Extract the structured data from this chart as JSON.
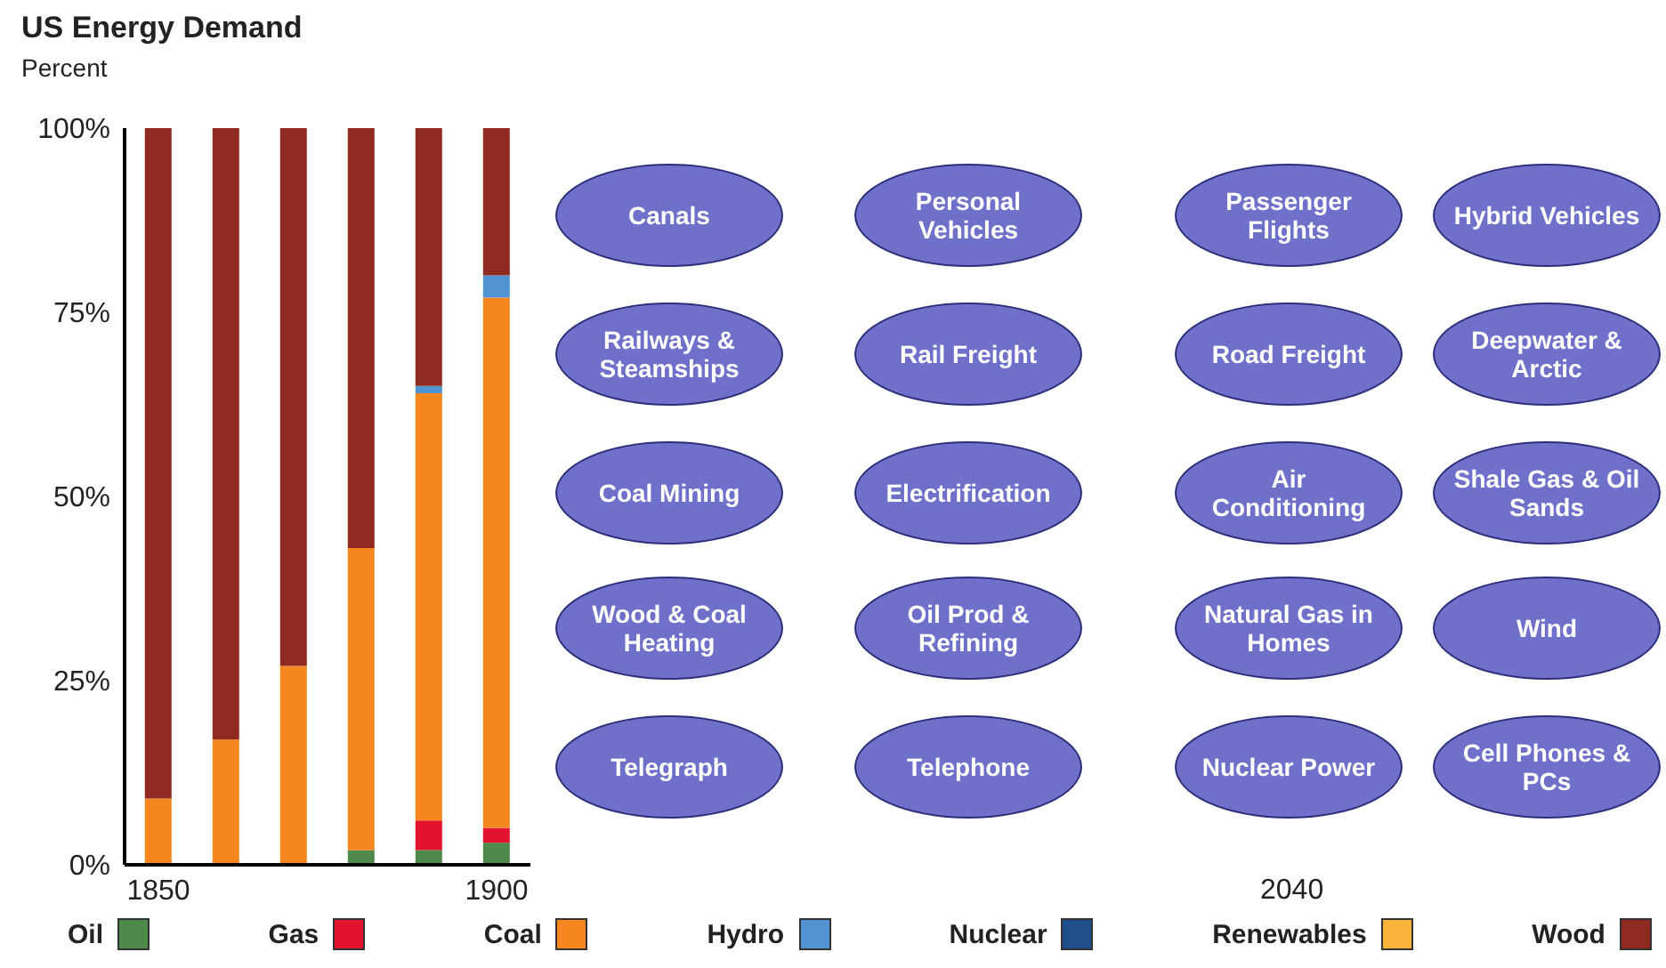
{
  "chart_data": {
    "type": "bar",
    "stacked": true,
    "title": "US Energy Demand",
    "ylabel": "Percent",
    "categories": [
      "1850",
      null,
      null,
      null,
      null,
      "1900"
    ],
    "series": [
      {
        "name": "Oil",
        "color": "#4f8a4a",
        "values": [
          0,
          0,
          0,
          2,
          2,
          3
        ]
      },
      {
        "name": "Gas",
        "color": "#e3132f",
        "values": [
          0,
          0,
          0,
          0,
          4,
          2
        ]
      },
      {
        "name": "Coal",
        "color": "#f7861f",
        "values": [
          9,
          17,
          27,
          41,
          58,
          72
        ]
      },
      {
        "name": "Hydro",
        "color": "#4f93d0",
        "values": [
          0,
          0,
          0,
          0,
          1,
          3
        ]
      },
      {
        "name": "Nuclear",
        "color": "#1f4e8c",
        "values": [
          0,
          0,
          0,
          0,
          0,
          0
        ]
      },
      {
        "name": "Renewables",
        "color": "#f8b43a",
        "values": [
          0,
          0,
          0,
          0,
          0,
          0
        ]
      },
      {
        "name": "Wood",
        "color": "#8e2a1f",
        "values": [
          91,
          83,
          73,
          57,
          35,
          20
        ]
      }
    ],
    "ylim": [
      0,
      100
    ],
    "yticks": [
      {
        "value": 0,
        "label": "0%"
      },
      {
        "value": 25,
        "label": "25%"
      },
      {
        "value": 50,
        "label": "50%"
      },
      {
        "value": 75,
        "label": "75%"
      },
      {
        "value": 100,
        "label": "100%"
      }
    ],
    "grid": false,
    "legend": "bottom",
    "annotations": [
      "Canals",
      "Railways & Steamships",
      "Coal Mining",
      "Wood & Coal Heating",
      "Telegraph",
      "Personal Vehicles",
      "Rail Freight",
      "Electrification",
      "Oil Prod & Refining",
      "Telephone",
      "Passenger Flights",
      "Road Freight",
      "Air Conditioning",
      "Natural Gas in Homes",
      "Nuclear Power",
      "Hybrid Vehicles",
      "Deepwater & Arctic",
      "Shale Gas & Oil Sands",
      "Wind",
      "Cell Phones & PCs",
      "2040"
    ]
  }
}
